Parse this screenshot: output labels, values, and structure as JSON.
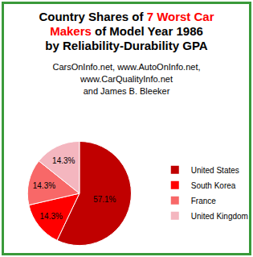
{
  "chart_data": {
    "type": "pie",
    "title": [
      [
        {
          "text": "Country Shares of "
        },
        {
          "text": "7 Worst Car",
          "color": "#ff0000"
        }
      ],
      [
        {
          "text": "Makers",
          "color": "#ff0000"
        },
        {
          "text": " of Model Year 1986"
        }
      ],
      [
        {
          "text": "by Reliability-Durability GPA"
        }
      ]
    ],
    "subtitle": [
      "CarsOnInfo.net, www.AutoOnInfo.net,",
      "www.CarQualityInfo.net",
      "and James B. Bleeker"
    ],
    "categories": [
      "United States",
      "South Korea",
      "France",
      "United Kingdom"
    ],
    "values": [
      57.1,
      14.3,
      14.3,
      14.3
    ],
    "value_labels": [
      "57.1%",
      "14.3%",
      "14.3%",
      "14.3%"
    ],
    "colors": [
      "#c00000",
      "#ff0000",
      "#f86868",
      "#f4b6bf"
    ],
    "data_labels": true,
    "legend": "right"
  }
}
